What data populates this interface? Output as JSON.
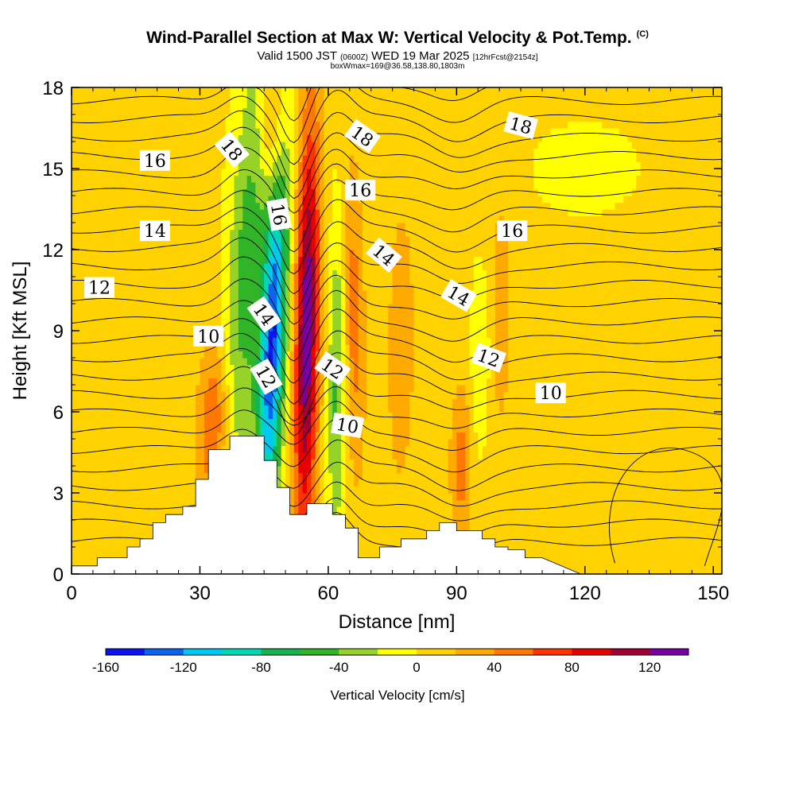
{
  "header": {
    "title": "Wind-Parallel Section at Max W: Vertical Velocity & Pot.Temp.",
    "copyright": "(C)",
    "valid_prefix": "Valid 1500 JST",
    "valid_utc": "(0600Z)",
    "valid_date": "WED 19 Mar 2025",
    "forecast_info": "[12hrFcst@2154z]",
    "box_info": "boxWmax=169@36.58,138.80,1803m"
  },
  "chart_data": {
    "type": "heatmap",
    "xlabel": "Distance [nm]",
    "ylabel": "Height [Kft MSL]",
    "xlim": [
      0,
      152
    ],
    "ylim": [
      0,
      18
    ],
    "xticks": [
      0,
      30,
      60,
      90,
      120,
      150
    ],
    "yticks": [
      0,
      3,
      6,
      9,
      12,
      15,
      18
    ],
    "grid": false,
    "colorbar": {
      "label": "Vertical Velocity [cm/s]",
      "tick_labels": [
        "-160",
        "-120",
        "-80",
        "-40",
        "0",
        "40",
        "80",
        "120"
      ],
      "tick_values": [
        -160,
        -120,
        -80,
        -40,
        0,
        40,
        80,
        120
      ],
      "range": [
        -160,
        140
      ],
      "step": 20,
      "colors": [
        "#0a14f0",
        "#0a64f0",
        "#00c8f0",
        "#00d8b4",
        "#14b450",
        "#32b428",
        "#96d228",
        "#ffff00",
        "#ffd200",
        "#ffaa00",
        "#ff7800",
        "#ff3200",
        "#e60000",
        "#a00032",
        "#7800a0"
      ]
    },
    "terrain": {
      "x": [
        0,
        6,
        6,
        13,
        13,
        16,
        16,
        19,
        19,
        22,
        22,
        26,
        26,
        29,
        29,
        32,
        32,
        37,
        37,
        45,
        45,
        48,
        48,
        51,
        51,
        55,
        55,
        61,
        61,
        64,
        64,
        67,
        67,
        72,
        72,
        77,
        77,
        83,
        83,
        86,
        86,
        90,
        90,
        96,
        96,
        99,
        99,
        102,
        102,
        106,
        106,
        110,
        110,
        119,
        119,
        152
      ],
      "y": [
        0.3,
        0.3,
        0.6,
        0.6,
        1.0,
        1.0,
        1.3,
        1.3,
        1.9,
        1.9,
        2.2,
        2.2,
        2.5,
        2.5,
        3.5,
        3.5,
        4.6,
        4.6,
        5.1,
        5.1,
        4.2,
        4.2,
        3.2,
        3.2,
        2.2,
        2.2,
        2.6,
        2.6,
        2.2,
        2.2,
        1.7,
        1.7,
        0.6,
        0.6,
        1.0,
        1.0,
        1.3,
        1.3,
        1.6,
        1.6,
        1.9,
        1.9,
        1.6,
        1.6,
        1.3,
        1.3,
        1.0,
        1.0,
        0.9,
        0.9,
        0.6,
        0.6,
        0.6,
        0.0,
        0.0,
        0.0
      ]
    },
    "velocity_features": [
      {
        "x": 47,
        "y": 8.5,
        "sx": 3.0,
        "sy": 7.0,
        "tilt": 0.25,
        "w": -145
      },
      {
        "x": 41,
        "y": 11.5,
        "sx": 4.5,
        "sy": 8.0,
        "tilt": 0.3,
        "w": -55
      },
      {
        "x": 55,
        "y": 9.0,
        "sx": 2.8,
        "sy": 8.0,
        "tilt": 0.1,
        "w": 130
      },
      {
        "x": 62,
        "y": 7.0,
        "sx": 2.2,
        "sy": 6.0,
        "tilt": 0.05,
        "w": -50
      },
      {
        "x": 66,
        "y": 9.5,
        "sx": 2.5,
        "sy": 6.0,
        "tilt": -0.1,
        "w": 45
      },
      {
        "x": 33,
        "y": 5.5,
        "sx": 3.5,
        "sy": 3.0,
        "tilt": 0.2,
        "w": 55
      },
      {
        "x": 47,
        "y": 16.5,
        "sx": 3.0,
        "sy": 3.0,
        "tilt": 0.0,
        "w": 45
      },
      {
        "x": 91,
        "y": 4.0,
        "sx": 2.5,
        "sy": 3.0,
        "tilt": 0.0,
        "w": 45
      },
      {
        "x": 96,
        "y": 8.0,
        "sx": 2.5,
        "sy": 3.5,
        "tilt": 0.1,
        "w": -28
      },
      {
        "x": 77,
        "y": 8.5,
        "sx": 3.5,
        "sy": 6.0,
        "tilt": 0.05,
        "w": 28
      },
      {
        "x": 100,
        "y": 10.0,
        "sx": 3.5,
        "sy": 6.0,
        "tilt": 0.05,
        "w": 25
      },
      {
        "x": 120,
        "y": 15.0,
        "sx": 30.0,
        "sy": 4.0,
        "tilt": 0.0,
        "w": -6
      },
      {
        "x": 140,
        "y": 4.5,
        "sx": 12.0,
        "sy": 4.0,
        "tilt": 0.0,
        "w": 10
      },
      {
        "x": 12,
        "y": 8.0,
        "sx": 15.0,
        "sy": 12.0,
        "tilt": 0.0,
        "w": 10
      }
    ],
    "contour_labels": [
      {
        "text": "18",
        "x": 37.5,
        "y": 15.7,
        "angle": 50
      },
      {
        "text": "16",
        "x": 19.5,
        "y": 15.3,
        "angle": 0
      },
      {
        "text": "16",
        "x": 48.5,
        "y": 13.3,
        "angle": 80
      },
      {
        "text": "18",
        "x": 68,
        "y": 16.2,
        "angle": 35
      },
      {
        "text": "18",
        "x": 105,
        "y": 16.6,
        "angle": 15
      },
      {
        "text": "16",
        "x": 67.5,
        "y": 14.2,
        "angle": 0
      },
      {
        "text": "16",
        "x": 103,
        "y": 12.7,
        "angle": 0
      },
      {
        "text": "14",
        "x": 19.5,
        "y": 12.7,
        "angle": 0
      },
      {
        "text": "14",
        "x": 73,
        "y": 11.8,
        "angle": 40
      },
      {
        "text": "14",
        "x": 45,
        "y": 9.6,
        "angle": 55
      },
      {
        "text": "14",
        "x": 90.5,
        "y": 10.3,
        "angle": 30
      },
      {
        "text": "12",
        "x": 6.5,
        "y": 10.6,
        "angle": 0
      },
      {
        "text": "12",
        "x": 45.5,
        "y": 7.3,
        "angle": 60
      },
      {
        "text": "12",
        "x": 61,
        "y": 7.6,
        "angle": 35
      },
      {
        "text": "12",
        "x": 97.5,
        "y": 8.0,
        "angle": 20
      },
      {
        "text": "10",
        "x": 32,
        "y": 8.8,
        "angle": 0
      },
      {
        "text": "10",
        "x": 64.5,
        "y": 5.5,
        "angle": 10
      },
      {
        "text": "10",
        "x": 112,
        "y": 6.7,
        "angle": 0
      }
    ]
  }
}
